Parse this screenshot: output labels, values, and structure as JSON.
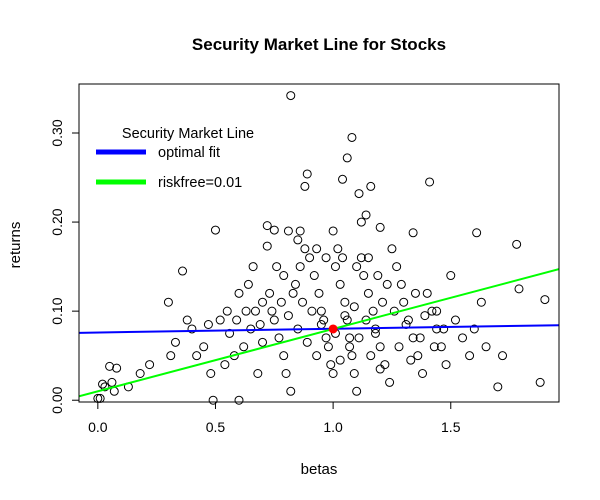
{
  "chart_data": {
    "type": "scatter",
    "title": "Security Market Line for Stocks",
    "xlabel": "betas",
    "ylabel": "returns",
    "xlim": [
      -0.08,
      1.96
    ],
    "ylim": [
      -0.002,
      0.355
    ],
    "xticks": [
      0.0,
      0.5,
      1.0,
      1.5
    ],
    "xtick_labels": [
      "0.0",
      "0.5",
      "1.0",
      "1.5"
    ],
    "yticks": [
      0.0,
      0.1,
      0.2,
      0.3
    ],
    "ytick_labels": [
      "0.00",
      "0.10",
      "0.20",
      "0.30"
    ],
    "grid": false,
    "legend": {
      "title": "Security Market Line",
      "placement": "top-left",
      "entries": [
        {
          "label": "optimal fit",
          "color": "#0000ff"
        },
        {
          "label": "riskfree=0.01",
          "color": "#00ff00"
        }
      ]
    },
    "point_color": "#000000",
    "lines": [
      {
        "name": "optimal fit",
        "color": "#0000ff",
        "intercept": 0.076,
        "slope": 0.0042
      },
      {
        "name": "riskfree=0.01",
        "color": "#00ff00",
        "intercept": 0.01,
        "slope": 0.07
      }
    ],
    "highlight_point": {
      "x": 1.0,
      "y": 0.08,
      "color": "#ff0000"
    },
    "points": [
      [
        0.82,
        0.342
      ],
      [
        1.08,
        0.295
      ],
      [
        1.06,
        0.272
      ],
      [
        1.41,
        0.245
      ],
      [
        0.89,
        0.254
      ],
      [
        0.88,
        0.24
      ],
      [
        1.11,
        0.232
      ],
      [
        1.16,
        0.24
      ],
      [
        1.04,
        0.248
      ],
      [
        0.5,
        0.191
      ],
      [
        0.72,
        0.196
      ],
      [
        0.75,
        0.191
      ],
      [
        0.81,
        0.19
      ],
      [
        0.86,
        0.19
      ],
      [
        1.0,
        0.19
      ],
      [
        1.14,
        0.208
      ],
      [
        1.12,
        0.2
      ],
      [
        1.2,
        0.194
      ],
      [
        1.34,
        0.188
      ],
      [
        1.61,
        0.188
      ],
      [
        1.78,
        0.175
      ],
      [
        1.9,
        0.113
      ],
      [
        1.88,
        0.02
      ],
      [
        1.79,
        0.125
      ],
      [
        1.63,
        0.11
      ],
      [
        1.72,
        0.05
      ],
      [
        1.7,
        0.015
      ],
      [
        1.5,
        0.14
      ],
      [
        1.44,
        0.1
      ],
      [
        0.36,
        0.145
      ],
      [
        0.3,
        0.11
      ],
      [
        0.22,
        0.04
      ],
      [
        0.18,
        0.03
      ],
      [
        0.13,
        0.015
      ],
      [
        0.06,
        0.02
      ],
      [
        0.08,
        0.036
      ],
      [
        0.05,
        0.038
      ],
      [
        0.02,
        0.018
      ],
      [
        0.0,
        0.002
      ],
      [
        0.01,
        0.002
      ],
      [
        0.03,
        0.015
      ],
      [
        0.07,
        0.01
      ],
      [
        0.49,
        0.0
      ],
      [
        0.6,
        0.0
      ],
      [
        0.68,
        0.03
      ],
      [
        0.7,
        0.065
      ],
      [
        0.72,
        0.173
      ],
      [
        0.66,
        0.15
      ],
      [
        0.64,
        0.13
      ],
      [
        0.6,
        0.12
      ],
      [
        0.55,
        0.1
      ],
      [
        0.52,
        0.09
      ],
      [
        0.47,
        0.085
      ],
      [
        0.45,
        0.06
      ],
      [
        0.42,
        0.05
      ],
      [
        0.4,
        0.08
      ],
      [
        0.38,
        0.09
      ],
      [
        0.33,
        0.065
      ],
      [
        0.31,
        0.05
      ],
      [
        0.48,
        0.03
      ],
      [
        0.54,
        0.04
      ],
      [
        0.58,
        0.05
      ],
      [
        0.62,
        0.06
      ],
      [
        0.65,
        0.08
      ],
      [
        0.67,
        0.1
      ],
      [
        0.7,
        0.11
      ],
      [
        0.73,
        0.12
      ],
      [
        0.75,
        0.09
      ],
      [
        0.77,
        0.07
      ],
      [
        0.79,
        0.05
      ],
      [
        0.8,
        0.03
      ],
      [
        0.82,
        0.01
      ],
      [
        0.84,
        0.13
      ],
      [
        0.86,
        0.15
      ],
      [
        0.88,
        0.17
      ],
      [
        0.9,
        0.16
      ],
      [
        0.92,
        0.14
      ],
      [
        0.94,
        0.12
      ],
      [
        0.95,
        0.1
      ],
      [
        0.96,
        0.09
      ],
      [
        0.97,
        0.07
      ],
      [
        0.98,
        0.06
      ],
      [
        0.99,
        0.04
      ],
      [
        1.0,
        0.03
      ],
      [
        1.01,
        0.15
      ],
      [
        1.02,
        0.17
      ],
      [
        1.03,
        0.13
      ],
      [
        1.05,
        0.11
      ],
      [
        1.06,
        0.09
      ],
      [
        1.07,
        0.07
      ],
      [
        1.08,
        0.05
      ],
      [
        1.09,
        0.03
      ],
      [
        1.1,
        0.01
      ],
      [
        1.12,
        0.16
      ],
      [
        1.13,
        0.14
      ],
      [
        1.15,
        0.12
      ],
      [
        1.17,
        0.1
      ],
      [
        1.18,
        0.08
      ],
      [
        1.2,
        0.06
      ],
      [
        1.22,
        0.04
      ],
      [
        1.24,
        0.02
      ],
      [
        1.25,
        0.17
      ],
      [
        1.27,
        0.15
      ],
      [
        1.29,
        0.13
      ],
      [
        1.3,
        0.11
      ],
      [
        1.32,
        0.09
      ],
      [
        1.34,
        0.07
      ],
      [
        1.36,
        0.05
      ],
      [
        1.38,
        0.03
      ],
      [
        1.4,
        0.12
      ],
      [
        1.42,
        0.1
      ],
      [
        1.44,
        0.08
      ],
      [
        1.46,
        0.06
      ],
      [
        1.48,
        0.04
      ],
      [
        1.52,
        0.09
      ],
      [
        1.55,
        0.07
      ],
      [
        1.58,
        0.05
      ],
      [
        1.6,
        0.08
      ],
      [
        1.65,
        0.06
      ],
      [
        0.85,
        0.18
      ],
      [
        0.93,
        0.17
      ],
      [
        0.97,
        0.16
      ],
      [
        1.04,
        0.16
      ],
      [
        1.1,
        0.15
      ],
      [
        1.15,
        0.16
      ],
      [
        1.19,
        0.14
      ],
      [
        1.23,
        0.13
      ],
      [
        0.76,
        0.15
      ],
      [
        0.79,
        0.14
      ],
      [
        0.83,
        0.12
      ],
      [
        0.87,
        0.11
      ],
      [
        0.91,
        0.1
      ],
      [
        0.95,
        0.085
      ],
      [
        1.01,
        0.075
      ],
      [
        1.05,
        0.095
      ],
      [
        1.09,
        0.105
      ],
      [
        1.14,
        0.09
      ],
      [
        1.18,
        0.075
      ],
      [
        1.21,
        0.11
      ],
      [
        1.26,
        0.1
      ],
      [
        1.31,
        0.085
      ],
      [
        1.35,
        0.12
      ],
      [
        1.39,
        0.095
      ],
      [
        0.56,
        0.075
      ],
      [
        0.59,
        0.09
      ],
      [
        0.63,
        0.1
      ],
      [
        0.69,
        0.085
      ],
      [
        0.74,
        0.1
      ],
      [
        0.78,
        0.11
      ],
      [
        0.81,
        0.095
      ],
      [
        0.85,
        0.08
      ],
      [
        0.89,
        0.065
      ],
      [
        0.93,
        0.05
      ],
      [
        1.03,
        0.045
      ],
      [
        1.07,
        0.06
      ],
      [
        1.11,
        0.07
      ],
      [
        1.16,
        0.05
      ],
      [
        1.2,
        0.035
      ],
      [
        1.28,
        0.06
      ],
      [
        1.33,
        0.045
      ],
      [
        1.37,
        0.07
      ],
      [
        1.43,
        0.06
      ],
      [
        1.47,
        0.08
      ]
    ]
  }
}
